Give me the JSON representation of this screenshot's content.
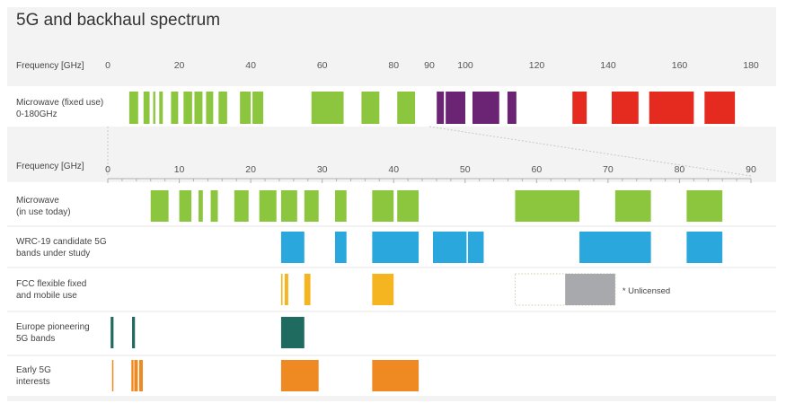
{
  "chart_data": {
    "type": "bar",
    "title": "5G and backhaul spectrum",
    "colors": {
      "green": "#8cc63f",
      "purple": "#6b2374",
      "red": "#e52a20",
      "blue": "#2aa7dc",
      "yellow": "#f5b521",
      "gray": "#a7a9ac",
      "teal": "#1f6b5f",
      "orange": "#ef8a23"
    },
    "upper_panel": {
      "axis_label": "Frequency [GHz]",
      "xlim": [
        0,
        180
      ],
      "ticks": [
        "0",
        "20",
        "40",
        "60",
        "80",
        "90",
        "100",
        "120",
        "140",
        "160",
        "180"
      ],
      "row": {
        "label_lines": [
          "Microwave (fixed use)",
          "0-180GHz"
        ],
        "bands": [
          {
            "start": 6,
            "end": 8.5,
            "color": "green"
          },
          {
            "start": 10,
            "end": 11.7,
            "color": "green"
          },
          {
            "start": 12.7,
            "end": 13.3,
            "color": "green"
          },
          {
            "start": 14.4,
            "end": 15.4,
            "color": "green"
          },
          {
            "start": 17.7,
            "end": 19.7,
            "color": "green"
          },
          {
            "start": 21.2,
            "end": 23.6,
            "color": "green"
          },
          {
            "start": 24.25,
            "end": 26.5,
            "color": "green"
          },
          {
            "start": 27.5,
            "end": 29.5,
            "color": "green"
          },
          {
            "start": 31,
            "end": 33.4,
            "color": "green"
          },
          {
            "start": 37,
            "end": 40,
            "color": "green"
          },
          {
            "start": 40.5,
            "end": 43.5,
            "color": "green"
          },
          {
            "start": 57,
            "end": 66,
            "color": "green"
          },
          {
            "start": 71,
            "end": 76,
            "color": "green"
          },
          {
            "start": 81,
            "end": 86,
            "color": "green"
          },
          {
            "start": 92,
            "end": 94,
            "color": "purple"
          },
          {
            "start": 94.5,
            "end": 100,
            "color": "purple"
          },
          {
            "start": 102,
            "end": 109.5,
            "color": "purple"
          },
          {
            "start": 111.8,
            "end": 114.3,
            "color": "purple"
          },
          {
            "start": 130,
            "end": 134,
            "color": "red"
          },
          {
            "start": 141,
            "end": 148.5,
            "color": "red"
          },
          {
            "start": 151.5,
            "end": 164,
            "color": "red"
          },
          {
            "start": 167,
            "end": 175.5,
            "color": "red"
          }
        ]
      }
    },
    "lower_panel": {
      "axis_label": "Frequency [GHz]",
      "xlim": [
        0,
        90
      ],
      "ticks": [
        "0",
        "10",
        "20",
        "30",
        "40",
        "50",
        "60",
        "70",
        "80",
        "90"
      ],
      "rows": [
        {
          "label_lines": [
            "Microwave",
            "(in use today)"
          ],
          "bands": [
            {
              "start": 6,
              "end": 8.5,
              "color": "green"
            },
            {
              "start": 10,
              "end": 11.7,
              "color": "green"
            },
            {
              "start": 12.7,
              "end": 13.3,
              "color": "green"
            },
            {
              "start": 14.4,
              "end": 15.4,
              "color": "green"
            },
            {
              "start": 17.7,
              "end": 19.7,
              "color": "green"
            },
            {
              "start": 21.2,
              "end": 23.6,
              "color": "green"
            },
            {
              "start": 24.25,
              "end": 26.5,
              "color": "green"
            },
            {
              "start": 27.5,
              "end": 29.5,
              "color": "green"
            },
            {
              "start": 31.8,
              "end": 33.4,
              "color": "green"
            },
            {
              "start": 37,
              "end": 40,
              "color": "green"
            },
            {
              "start": 40.5,
              "end": 43.5,
              "color": "green"
            },
            {
              "start": 57,
              "end": 66,
              "color": "green"
            },
            {
              "start": 71,
              "end": 76,
              "color": "green"
            },
            {
              "start": 81,
              "end": 86,
              "color": "green"
            }
          ]
        },
        {
          "label_lines": [
            "WRC-19 candidate 5G",
            "bands under study"
          ],
          "bands": [
            {
              "start": 24.25,
              "end": 27.5,
              "color": "blue"
            },
            {
              "start": 31.8,
              "end": 33.4,
              "color": "blue"
            },
            {
              "start": 37,
              "end": 43.5,
              "color": "blue"
            },
            {
              "start": 45.5,
              "end": 50.2,
              "color": "blue"
            },
            {
              "start": 50.4,
              "end": 52.6,
              "color": "blue"
            },
            {
              "start": 66,
              "end": 76,
              "color": "blue"
            },
            {
              "start": 81,
              "end": 86,
              "color": "blue"
            }
          ]
        },
        {
          "label_lines": [
            "FCC flexible fixed",
            "and mobile use"
          ],
          "bands": [
            {
              "start": 24.25,
              "end": 24.45,
              "color": "yellow"
            },
            {
              "start": 24.75,
              "end": 25.25,
              "color": "yellow"
            },
            {
              "start": 27.5,
              "end": 28.35,
              "color": "yellow"
            },
            {
              "start": 37,
              "end": 40,
              "color": "yellow"
            },
            {
              "start": 64,
              "end": 71,
              "color": "gray"
            }
          ],
          "unlicensed_outline": [
            57,
            71
          ],
          "note": "* Unlicensed"
        },
        {
          "label_lines": [
            "Europe pioneering",
            "5G bands"
          ],
          "bands": [
            {
              "start": 0.4,
              "end": 0.8,
              "color": "teal"
            },
            {
              "start": 3.4,
              "end": 3.8,
              "color": "teal"
            },
            {
              "start": 24.25,
              "end": 27.5,
              "color": "teal"
            }
          ]
        },
        {
          "label_lines": [
            "Early 5G",
            "interests"
          ],
          "bands": [
            {
              "start": 0.6,
              "end": 0.75,
              "color": "orange"
            },
            {
              "start": 3.3,
              "end": 3.6,
              "color": "orange"
            },
            {
              "start": 3.7,
              "end": 4.2,
              "color": "orange"
            },
            {
              "start": 4.4,
              "end": 4.9,
              "color": "orange"
            },
            {
              "start": 24.25,
              "end": 29.5,
              "color": "orange"
            },
            {
              "start": 37,
              "end": 43.5,
              "color": "orange"
            }
          ]
        }
      ]
    }
  }
}
